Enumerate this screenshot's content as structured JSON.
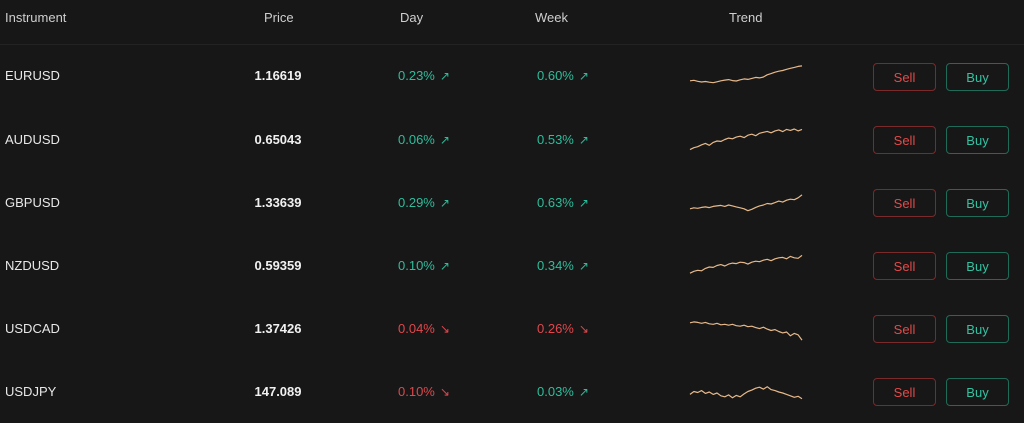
{
  "columns": {
    "instrument": "Instrument",
    "price": "Price",
    "day": "Day",
    "week": "Week",
    "trend": "Trend"
  },
  "buttons": {
    "sell": "Sell",
    "buy": "Buy"
  },
  "colors": {
    "up": "#2ebd9b",
    "down": "#e0474c",
    "sparkline": "#e7b98a"
  },
  "rows": [
    {
      "instrument": "EURUSD",
      "price": "1.16619",
      "day": "0.23%",
      "day_dir": "up",
      "day_arrow": "↗",
      "week": "0.60%",
      "week_dir": "up",
      "week_arrow": "↗",
      "trend": [
        0.3,
        0.32,
        0.28,
        0.25,
        0.27,
        0.24,
        0.22,
        0.26,
        0.3,
        0.33,
        0.35,
        0.31,
        0.29,
        0.34,
        0.38,
        0.36,
        0.4,
        0.44,
        0.42,
        0.46,
        0.55,
        0.6,
        0.66,
        0.7,
        0.73,
        0.78,
        0.82,
        0.86,
        0.9,
        0.92
      ]
    },
    {
      "instrument": "AUDUSD",
      "price": "0.65043",
      "day": "0.06%",
      "day_dir": "up",
      "day_arrow": "↗",
      "week": "0.53%",
      "week_dir": "up",
      "week_arrow": "↗",
      "trend": [
        0.1,
        0.18,
        0.22,
        0.3,
        0.36,
        0.28,
        0.4,
        0.46,
        0.44,
        0.52,
        0.58,
        0.55,
        0.62,
        0.66,
        0.6,
        0.7,
        0.74,
        0.68,
        0.78,
        0.82,
        0.86,
        0.8,
        0.88,
        0.92,
        0.85,
        0.94,
        0.9,
        0.96,
        0.88,
        0.94
      ]
    },
    {
      "instrument": "GBPUSD",
      "price": "1.33639",
      "day": "0.29%",
      "day_dir": "up",
      "day_arrow": "↗",
      "week": "0.63%",
      "week_dir": "up",
      "week_arrow": "↗",
      "trend": [
        0.3,
        0.34,
        0.32,
        0.36,
        0.38,
        0.35,
        0.4,
        0.42,
        0.44,
        0.4,
        0.46,
        0.42,
        0.38,
        0.34,
        0.3,
        0.22,
        0.28,
        0.36,
        0.42,
        0.46,
        0.52,
        0.5,
        0.56,
        0.62,
        0.58,
        0.66,
        0.7,
        0.68,
        0.76,
        0.88
      ]
    },
    {
      "instrument": "NZDUSD",
      "price": "0.59359",
      "day": "0.10%",
      "day_dir": "up",
      "day_arrow": "↗",
      "week": "0.34%",
      "week_dir": "up",
      "week_arrow": "↗",
      "trend": [
        0.2,
        0.28,
        0.32,
        0.3,
        0.4,
        0.46,
        0.44,
        0.52,
        0.56,
        0.5,
        0.58,
        0.62,
        0.6,
        0.66,
        0.64,
        0.58,
        0.66,
        0.7,
        0.68,
        0.74,
        0.78,
        0.72,
        0.8,
        0.84,
        0.86,
        0.8,
        0.9,
        0.84,
        0.82,
        0.94
      ]
    },
    {
      "instrument": "USDCAD",
      "price": "1.37426",
      "day": "0.04%",
      "day_dir": "down",
      "day_arrow": "↘",
      "week": "0.26%",
      "week_dir": "down",
      "week_arrow": "↘",
      "trend": [
        0.84,
        0.88,
        0.86,
        0.82,
        0.86,
        0.8,
        0.78,
        0.82,
        0.76,
        0.78,
        0.74,
        0.78,
        0.72,
        0.7,
        0.74,
        0.68,
        0.7,
        0.64,
        0.6,
        0.66,
        0.58,
        0.52,
        0.56,
        0.48,
        0.42,
        0.46,
        0.3,
        0.4,
        0.34,
        0.12
      ]
    },
    {
      "instrument": "USDJPY",
      "price": "147.089",
      "day": "0.10%",
      "day_dir": "down",
      "day_arrow": "↘",
      "week": "0.03%",
      "week_dir": "up",
      "week_arrow": "↗",
      "trend": [
        0.4,
        0.52,
        0.48,
        0.56,
        0.44,
        0.5,
        0.4,
        0.46,
        0.34,
        0.3,
        0.38,
        0.26,
        0.36,
        0.3,
        0.42,
        0.52,
        0.58,
        0.66,
        0.7,
        0.62,
        0.72,
        0.6,
        0.56,
        0.5,
        0.46,
        0.4,
        0.34,
        0.28,
        0.32,
        0.22
      ]
    }
  ]
}
